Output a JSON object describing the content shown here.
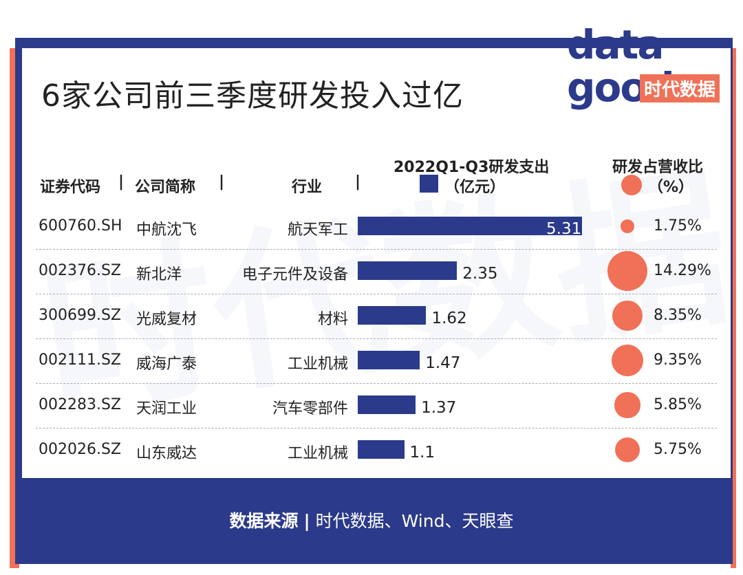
{
  "title": "6家公司前三季度研发投入过亿",
  "logo": {
    "word1": "data",
    "word2": "good",
    "cn": "时代数据"
  },
  "watermark": "时代数据",
  "headers": {
    "code": "证券代码",
    "name": "公司简称",
    "industry": "行业",
    "separator": "|",
    "rd_spend": "2022Q1-Q3研发支出",
    "rd_unit": "（亿元）",
    "ratio": "研发占营收比",
    "ratio_unit": "（%）"
  },
  "chart_data": {
    "type": "table",
    "rd_max": 5.31,
    "ratio_max": 14.29,
    "rows": [
      {
        "code": "600760.SH",
        "name": "中航沈飞",
        "industry": "航天军工",
        "rd": 5.31,
        "rd_label": "5.31",
        "ratio": 1.75,
        "ratio_label": "1.75%"
      },
      {
        "code": "002376.SZ",
        "name": "新北洋",
        "industry": "电子元件及设备",
        "rd": 2.35,
        "rd_label": "2.35",
        "ratio": 14.29,
        "ratio_label": "14.29%"
      },
      {
        "code": "300699.SZ",
        "name": "光威复材",
        "industry": "材料",
        "rd": 1.62,
        "rd_label": "1.62",
        "ratio": 8.35,
        "ratio_label": "8.35%"
      },
      {
        "code": "002111.SZ",
        "name": "威海广泰",
        "industry": "工业机械",
        "rd": 1.47,
        "rd_label": "1.47",
        "ratio": 9.35,
        "ratio_label": "9.35%"
      },
      {
        "code": "002283.SZ",
        "name": "天润工业",
        "industry": "汽车零部件",
        "rd": 1.37,
        "rd_label": "1.37",
        "ratio": 5.85,
        "ratio_label": "5.85%"
      },
      {
        "code": "002026.SZ",
        "name": "山东威达",
        "industry": "工业机械",
        "rd": 1.1,
        "rd_label": "1.1",
        "ratio": 5.75,
        "ratio_label": "5.75%"
      }
    ]
  },
  "footer": {
    "label": "数据来源",
    "separator": "|",
    "sources": "时代数据、Wind、天眼查"
  },
  "colors": {
    "navy": "#2b3a8a",
    "coral": "#f07157"
  }
}
